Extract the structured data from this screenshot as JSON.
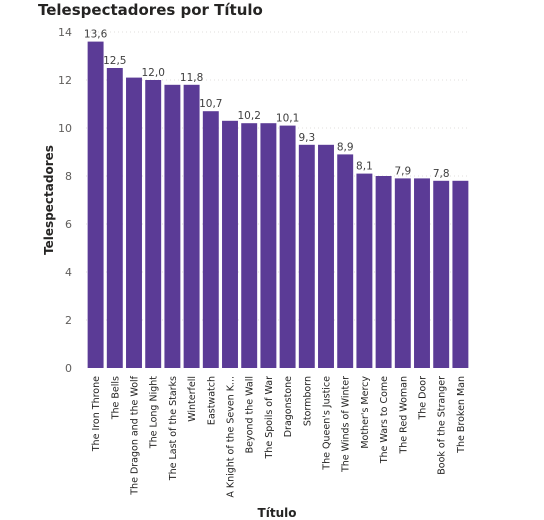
{
  "chart_data": {
    "type": "bar",
    "title": "Telespectadores por Título",
    "xlabel": "Título",
    "ylabel": "Telespectadores",
    "ylim": [
      0,
      14
    ],
    "yticks": [
      "0",
      "2",
      "4",
      "6",
      "8",
      "10",
      "12",
      "14"
    ],
    "grid": true,
    "color": "#5b3b96",
    "categories": [
      "The Iron Throne",
      "The Bells",
      "The Dragon and the Wolf",
      "The Long Night",
      "The Last of the Starks",
      "Winterfell",
      "Eastwatch",
      "A Knight of the Seven K...",
      "Beyond the Wall",
      "The Spoils of War",
      "Dragonstone",
      "Stormborn",
      "The Queen's Justice",
      "The Winds of Winter",
      "Mother's Mercy",
      "The Wars to Come",
      "The Red Woman",
      "The Door",
      "Book of the Stranger",
      "The Broken Man"
    ],
    "values": [
      13.6,
      12.5,
      12.1,
      12.0,
      11.8,
      11.8,
      10.7,
      10.3,
      10.2,
      10.2,
      10.1,
      9.3,
      9.3,
      8.9,
      8.1,
      8.0,
      7.9,
      7.9,
      7.8,
      7.8
    ],
    "data_labels": [
      "13,6",
      "12,5",
      "",
      "12,0",
      "",
      "11,8",
      "10,7",
      "",
      "10,2",
      "",
      "10,1",
      "9,3",
      "",
      "8,9",
      "8,1",
      "",
      "7,9",
      "",
      "7,8",
      ""
    ]
  }
}
